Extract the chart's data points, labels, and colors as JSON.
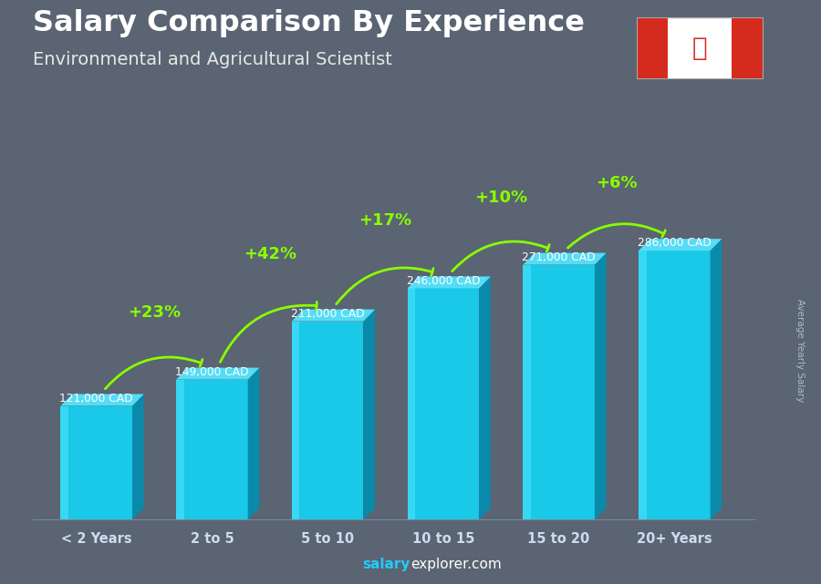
{
  "title": "Salary Comparison By Experience",
  "subtitle": "Environmental and Agricultural Scientist",
  "ylabel": "Average Yearly Salary",
  "footer_bold": "salary",
  "footer_regular": "explorer.com",
  "categories": [
    "< 2 Years",
    "2 to 5",
    "5 to 10",
    "10 to 15",
    "15 to 20",
    "20+ Years"
  ],
  "values": [
    121000,
    149000,
    211000,
    246000,
    271000,
    286000
  ],
  "value_labels": [
    "121,000 CAD",
    "149,000 CAD",
    "211,000 CAD",
    "246,000 CAD",
    "271,000 CAD",
    "286,000 CAD"
  ],
  "pct_changes": [
    "+23%",
    "+42%",
    "+17%",
    "+10%",
    "+6%"
  ],
  "bar_color_front": "#1ac8e8",
  "bar_color_side": "#0a8aaa",
  "bar_color_top": "#55ddf5",
  "bg_color": "#5a6472",
  "title_color": "#ffffff",
  "subtitle_color": "#e8e8e8",
  "label_color": "#ccddee",
  "pct_color": "#88ff00",
  "value_label_color": "#ffffff",
  "axis_label_color": "#aabbcc",
  "footer_salary_color": "#22ccff",
  "footer_text_color": "#ffffff",
  "ylim_max": 360000,
  "bar_width": 0.62,
  "flag_red": "#d52b1e",
  "flag_white": "#ffffff"
}
